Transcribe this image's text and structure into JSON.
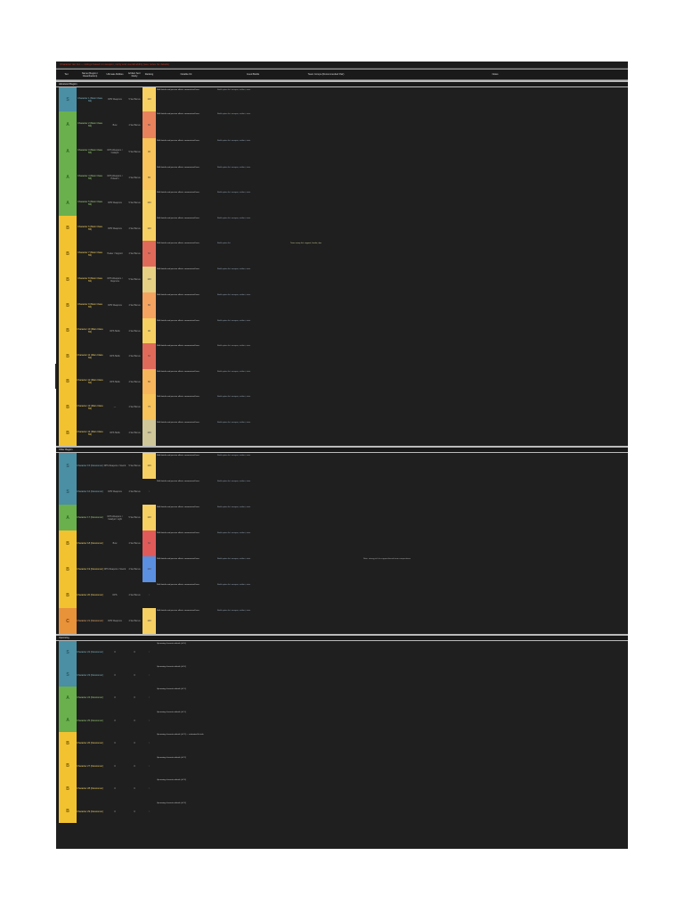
{
  "title": "Character tier list — ratings based on weapon, rarity and overall ability (see notes for details)",
  "headers": {
    "tier": "Tier",
    "name": "Name (Region / Class/Faction)",
    "weapon": "Ultimate Abilities",
    "rarity": "Artifact Set / Rarity",
    "score": "Ranking",
    "notes": "Notable Kit",
    "list": "Good Builds",
    "list2": "Team Comps (Recommended Pair)",
    "other": "Notes"
  },
  "sections": [
    {
      "label": "Advanced Region",
      "rows": [
        {
          "tier": "S",
          "name": "Character 1 (Main Class SS)",
          "weapon": "DPS Weapons",
          "rarity": "5 Set Bonus",
          "score": "100",
          "score_color": "#f7d063",
          "notes": "Skill details and passive effects summarised here.",
          "list": "Build option list: weapon, artifact, stats",
          "list2": "",
          "other": ""
        },
        {
          "tier": "A",
          "name": "Character 2 (Main Class SS)",
          "weapon": "Bow",
          "rarity": "4 Set Bonus",
          "score": "80",
          "score_color": "#e8825c",
          "notes": "Skill details and passive effects summarised here.",
          "list": "Build option list: weapon, artifact, stats",
          "list2": "",
          "other": ""
        },
        {
          "tier": "A",
          "name": "Character 3 (Main Class SS)",
          "weapon": "DPS Weapons / Catalyst",
          "rarity": "5 Set Bonus",
          "score": "90",
          "score_color": "#f7c35a",
          "notes": "Skill details and passive effects summarised here.",
          "list": "Build option list: weapon, artifact, stats",
          "list2": "",
          "other": ""
        },
        {
          "tier": "A",
          "name": "Character 4 (Main Class SS)",
          "weapon": "DPS Weapons / Polearm",
          "rarity": "4 Set Bonus",
          "score": "85",
          "score_color": "#f7c35a",
          "notes": "Skill details and passive effects summarised here.",
          "list": "Build option list: weapon, artifact, stats",
          "list2": "",
          "other": ""
        },
        {
          "tier": "A",
          "name": "Character 5 (Main Class SS)",
          "weapon": "DPS Weapons",
          "rarity": "5 Set Bonus",
          "score": "100",
          "score_color": "#f7d063",
          "notes": "Skill details and passive effects summarised here.",
          "list": "Build option list: weapon, artifact, stats",
          "list2": "",
          "other": ""
        },
        {
          "tier": "B",
          "name": "Character 6 (Main Class SS)",
          "weapon": "DPS Weapons",
          "rarity": "4 Set Bonus",
          "score": "100",
          "score_color": "#f7d063",
          "notes": "Skill details and passive effects summarised here.",
          "list": "Build option list: weapon, artifact, stats",
          "list2": "",
          "other": ""
        },
        {
          "tier": "B",
          "name": "Character 7 (Main Class SS)",
          "weapon": "Healer / Support",
          "rarity": "4 Set Bonus",
          "score": "60",
          "score_color": "#e06a5a",
          "notes": "Skill details and passive effects summarised here.",
          "list": "Build option list",
          "list2": "Team comp list: support, healer, dps",
          "other": ""
        },
        {
          "tier": "B",
          "name": "Character 8 (Main Class SS)",
          "weapon": "DPS Weapons / Claymore",
          "rarity": "5 Set Bonus",
          "score": "100",
          "score_color": "#e5d084",
          "notes": "Skill details and passive effects summarised here.",
          "list": "Build option list: weapon, artifact, stats",
          "list2": "",
          "other": ""
        },
        {
          "tier": "B",
          "name": "Character 9 (Main Class SS)",
          "weapon": "DPS Weapons",
          "rarity": "4 Set Bonus",
          "score": "80",
          "score_color": "#f4a460",
          "notes": "Skill details and passive effects summarised here.",
          "list": "Build option list: weapon, artifact, stats",
          "list2": "",
          "other": ""
        },
        {
          "tier": "B",
          "name": "Character 10 (Main Class SS)",
          "weapon": "DPS Skills",
          "rarity": "4 Set Bonus",
          "score": "90",
          "score_color": "#f7d063",
          "notes": "Skill details and passive effects summarised here.",
          "list": "Build option list: weapon, artifact, stats",
          "list2": "",
          "other": ""
        },
        {
          "tier": "B",
          "name": "Character 11 (Main Class SS)",
          "weapon": "DPS Skills",
          "rarity": "4 Set Bonus",
          "score": "60",
          "score_color": "#e06a5a",
          "notes": "Skill details and passive effects summarised here.",
          "list": "Build option list: weapon, artifact, stats",
          "list2": "",
          "other": ""
        },
        {
          "tier": "B",
          "name": "Character 12 (Main Class SS)",
          "weapon": "DPS Skills",
          "rarity": "4 Set Bonus",
          "score": "80",
          "score_color": "#f7b65c",
          "notes": "Skill details and passive effects summarised here.",
          "list": "Build option list: weapon, artifact, stats",
          "list2": "",
          "other": ""
        },
        {
          "tier": "B",
          "name": "Character 13 (Main Class SS)",
          "weapon": "—",
          "rarity": "4 Set Bonus",
          "score": "75",
          "score_color": "#f7c35a",
          "notes": "Skill details and passive effects summarised here.",
          "list": "Build option list: weapon, artifact, stats",
          "list2": "",
          "other": ""
        },
        {
          "tier": "B",
          "name": "Character 14 (Main Class SS)",
          "weapon": "DPS Skills",
          "rarity": "4 Set Bonus",
          "score": "100",
          "score_color": "#cfc79a",
          "notes": "Skill details and passive effects summarised here.",
          "list": "Build option list: weapon, artifact, stats",
          "list2": "",
          "other": ""
        }
      ]
    },
    {
      "label": "Other Region",
      "rows": [
        {
          "tier": "S",
          "name": "Character 15 (Newcomer)",
          "weapon": "DPS Weapons / Sword",
          "rarity": "5 Set Bonus",
          "score": "100",
          "score_color": "#f7d063",
          "notes": "Skill details and passive effects summarised here.",
          "list": "Build option list: weapon, artifact, stats",
          "list2": "",
          "other": ""
        },
        {
          "tier": "S",
          "name": "Character 16 (Newcomer)",
          "weapon": "DPS Weapons",
          "rarity": "4 Set Bonus",
          "score": "0",
          "score_color": "#1f1f1f",
          "notes": "Skill details and passive effects summarised here.",
          "list": "Build option list: weapon, artifact, stats",
          "list2": "",
          "other": ""
        },
        {
          "tier": "A",
          "name": "Character 17 (Newcomer)",
          "weapon": "DPS Weapons / Catalyst / Light",
          "rarity": "5 Set Bonus",
          "score": "100",
          "score_color": "#f7d063",
          "notes": "Skill details and passive effects summarised here.",
          "list": "Build option list: weapon, artifact, stats",
          "list2": "",
          "other": ""
        },
        {
          "tier": "B",
          "name": "Character 18 (Newcomer)",
          "weapon": "Bow",
          "rarity": "4 Set Bonus",
          "score": "60",
          "score_color": "#e05a5a",
          "notes": "Skill details and passive effects summarised here.",
          "list": "Build option list: weapon, artifact, stats",
          "list2": "",
          "other": ""
        },
        {
          "tier": "B",
          "name": "Character 19 (Newcomer)",
          "weapon": "DPS Weapons / Sword",
          "rarity": "4 Set Bonus",
          "score": "100",
          "score_color": "#5b8fe0",
          "notes": "Skill details and passive effects summarised here.",
          "list": "Build option list: weapon, artifact, stats",
          "list2": "",
          "other": "Note: strong pick for support-based team compositions"
        },
        {
          "tier": "B",
          "name": "Character 20 (Newcomer)",
          "weapon": "DPS",
          "rarity": "4 Set Bonus",
          "score": "0",
          "score_color": "#1f1f1f",
          "notes": "Skill details and passive effects summarised here.",
          "list": "Build option list: weapon, artifact, stats",
          "list2": "",
          "other": ""
        },
        {
          "tier": "C",
          "name": "Character 21 (Newcomer)",
          "weapon": "DPS Weapons",
          "rarity": "4 Set Bonus",
          "score": "100",
          "score_color": "#f7d063",
          "notes": "Skill details and passive effects summarised here.",
          "list": "Build option list: weapon, artifact, stats",
          "list2": "",
          "other": ""
        }
      ]
    },
    {
      "label": "Upcoming",
      "rows": [
        {
          "tier": "S",
          "name": "Character 22 (Newcomer)",
          "weapon": "0",
          "rarity": "0",
          "score": "0",
          "score_color": "#1f1f1f",
          "notes": "Upcoming character details (v2.0)",
          "list": "",
          "list2": "",
          "other": ""
        },
        {
          "tier": "S",
          "name": "Character 23 (Newcomer)",
          "weapon": "0",
          "rarity": "0",
          "score": "0",
          "score_color": "#1f1f1f",
          "notes": "Upcoming character details (v2.0)",
          "list": "",
          "list2": "",
          "other": ""
        },
        {
          "tier": "A",
          "name": "Character 24 (Newcomer)",
          "weapon": "0",
          "rarity": "0",
          "score": "0",
          "score_color": "#1f1f1f",
          "notes": "Upcoming character details (v2.1)",
          "list": "",
          "list2": "",
          "other": ""
        },
        {
          "tier": "A",
          "name": "Character 25 (Newcomer)",
          "weapon": "0",
          "rarity": "0",
          "score": "0",
          "score_color": "#1f1f1f",
          "notes": "Upcoming character details (v2.1)",
          "list": "",
          "list2": "",
          "other": ""
        },
        {
          "tier": "B",
          "name": "Character 26 (Newcomer)",
          "weapon": "0",
          "rarity": "0",
          "score": "0",
          "score_color": "#1f1f1f",
          "notes": "Upcoming character details (v2.2) — estimated kit info",
          "list": "",
          "list2": "",
          "other": ""
        },
        {
          "tier": "B",
          "name": "Character 27 (Newcomer)",
          "weapon": "0",
          "rarity": "0",
          "score": "0",
          "score_color": "#1f1f1f",
          "notes": "Upcoming character details (v2.2)",
          "list": "",
          "list2": "",
          "other": ""
        },
        {
          "tier": "B",
          "name": "Character 28 (Newcomer)",
          "weapon": "0",
          "rarity": "0",
          "score": "0",
          "score_color": "#1f1f1f",
          "notes": "Upcoming character details (v2.3)",
          "list": "",
          "list2": "",
          "other": ""
        },
        {
          "tier": "B",
          "name": "Character 29 (Newcomer)",
          "weapon": "0",
          "rarity": "0",
          "score": "0",
          "score_color": "#1f1f1f",
          "notes": "Upcoming character details (v2.3)",
          "list": "",
          "list2": "",
          "other": ""
        }
      ]
    }
  ]
}
